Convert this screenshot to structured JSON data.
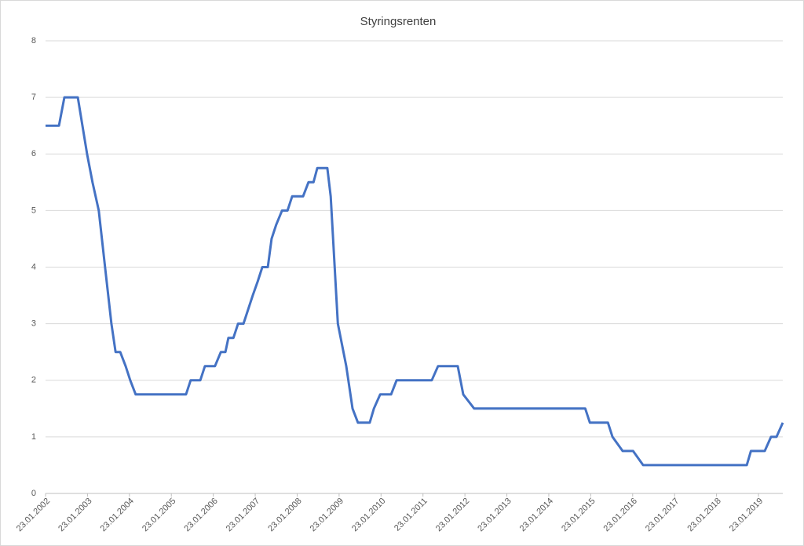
{
  "chart_data": {
    "type": "line",
    "title": "Styringsrenten",
    "x": [
      2002.06,
      2002.38,
      2002.51,
      2002.83,
      2002.94,
      2003.05,
      2003.18,
      2003.33,
      2003.48,
      2003.63,
      2003.73,
      2003.84,
      2003.97,
      2004.08,
      2004.21,
      2005.41,
      2005.52,
      2005.75,
      2005.86,
      2006.1,
      2006.24,
      2006.35,
      2006.42,
      2006.54,
      2006.65,
      2006.78,
      2006.89,
      2007.0,
      2007.12,
      2007.23,
      2007.36,
      2007.45,
      2007.56,
      2007.7,
      2007.83,
      2007.94,
      2008.2,
      2008.33,
      2008.45,
      2008.54,
      2008.78,
      2008.86,
      2009.03,
      2009.23,
      2009.38,
      2009.51,
      2009.79,
      2009.89,
      2010.04,
      2010.3,
      2010.43,
      2011.27,
      2011.42,
      2011.89,
      2012.02,
      2012.28,
      2014.93,
      2015.04,
      2015.47,
      2015.58,
      2015.82,
      2016.07,
      2016.31,
      2018.78,
      2018.88,
      2019.21,
      2019.36,
      2019.49,
      2019.64
    ],
    "values": [
      6.5,
      6.5,
      7,
      7,
      6.5,
      6,
      5.5,
      5,
      4,
      3,
      2.5,
      2.5,
      2.25,
      2,
      1.75,
      1.75,
      2,
      2,
      2.25,
      2.25,
      2.5,
      2.5,
      2.75,
      2.75,
      3,
      3,
      3.25,
      3.5,
      3.75,
      4,
      4,
      4.5,
      4.75,
      5,
      5,
      5.25,
      5.25,
      5.5,
      5.5,
      5.75,
      5.75,
      5.25,
      3,
      2.25,
      1.5,
      1.25,
      1.25,
      1.5,
      1.75,
      1.75,
      2,
      2,
      2.25,
      2.25,
      1.75,
      1.5,
      1.5,
      1.25,
      1.25,
      1,
      0.75,
      0.75,
      0.5,
      0.5,
      0.75,
      0.75,
      1,
      1,
      1.25
    ],
    "color": "#4472c4",
    "xlim": [
      2002.06,
      2019.64
    ],
    "xticks": [
      {
        "value": 2002.06,
        "label": "23.01.2002"
      },
      {
        "value": 2003.06,
        "label": "23.01.2003"
      },
      {
        "value": 2004.06,
        "label": "23.01.2004"
      },
      {
        "value": 2005.06,
        "label": "23.01.2005"
      },
      {
        "value": 2006.06,
        "label": "23.01.2006"
      },
      {
        "value": 2007.06,
        "label": "23.01.2007"
      },
      {
        "value": 2008.06,
        "label": "23.01.2008"
      },
      {
        "value": 2009.06,
        "label": "23.01.2009"
      },
      {
        "value": 2010.06,
        "label": "23.01.2010"
      },
      {
        "value": 2011.06,
        "label": "23.01.2011"
      },
      {
        "value": 2012.06,
        "label": "23.01.2012"
      },
      {
        "value": 2013.06,
        "label": "23.01.2013"
      },
      {
        "value": 2014.06,
        "label": "23.01.2014"
      },
      {
        "value": 2015.06,
        "label": "23.01.2015"
      },
      {
        "value": 2016.06,
        "label": "23.01.2016"
      },
      {
        "value": 2017.06,
        "label": "23.01.2017"
      },
      {
        "value": 2018.06,
        "label": "23.01.2018"
      },
      {
        "value": 2019.06,
        "label": "23.01.2019"
      }
    ],
    "ylim": [
      0,
      8
    ],
    "yticks": [
      0,
      1,
      2,
      3,
      4,
      5,
      6,
      7,
      8
    ],
    "grid": true
  }
}
